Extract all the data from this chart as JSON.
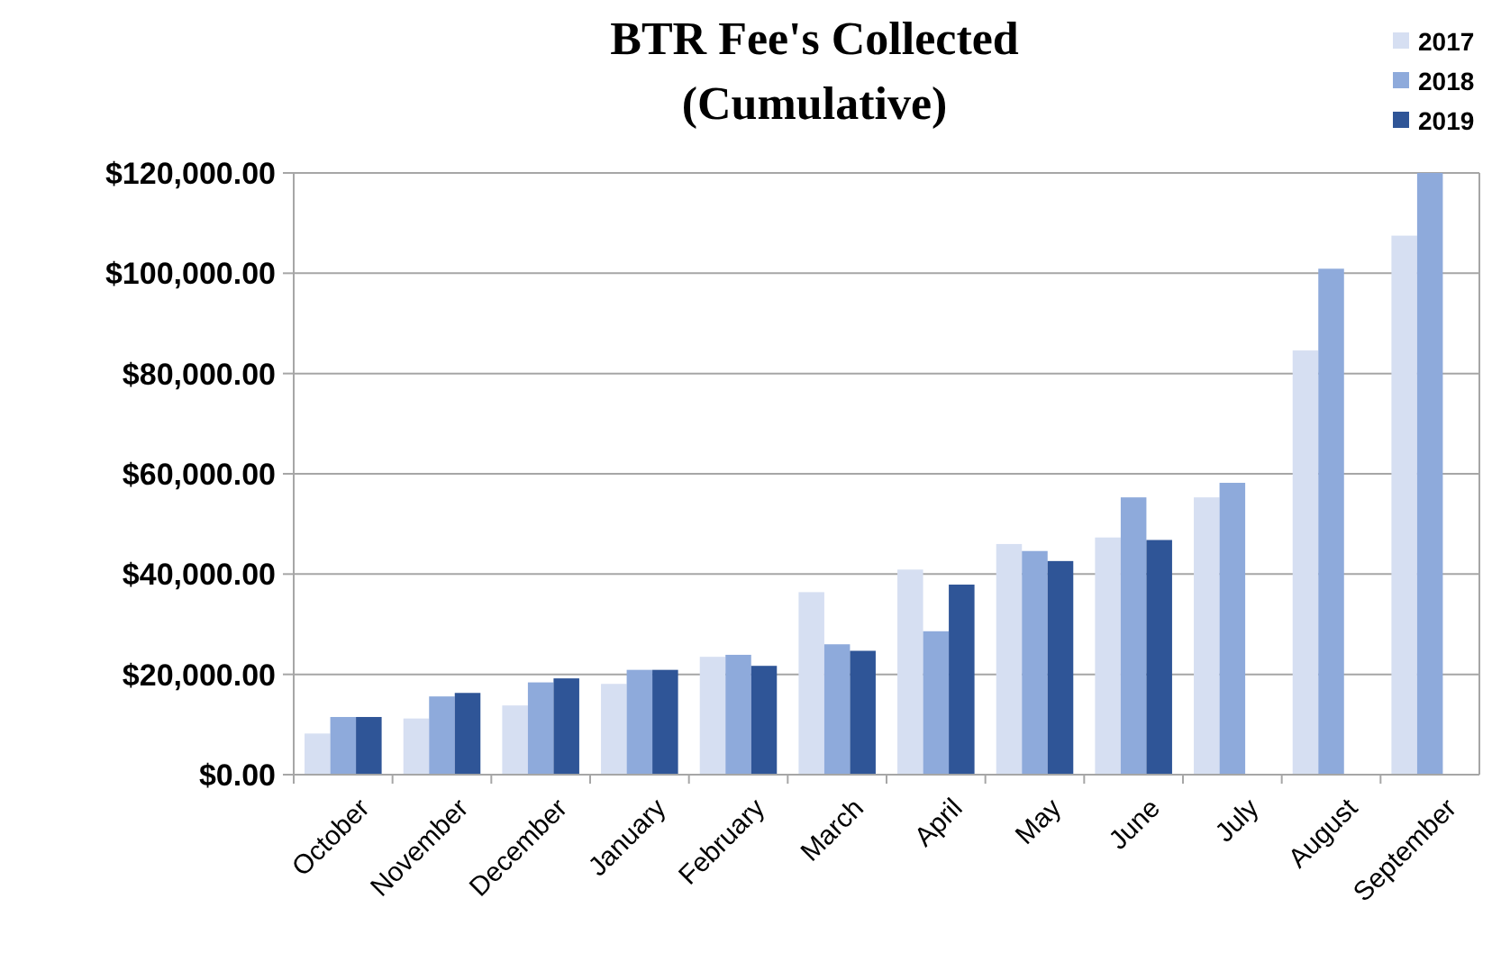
{
  "chart_data": {
    "type": "bar",
    "title": "BTR Fee's Collected",
    "subtitle": "(Cumulative)",
    "categories": [
      "October",
      "November",
      "December",
      "January",
      "February",
      "March",
      "April",
      "May",
      "June",
      "July",
      "August",
      "September"
    ],
    "series": [
      {
        "name": "2017",
        "color": "#d6dff2",
        "values": [
          8200,
          11200,
          13800,
          18100,
          23500,
          36400,
          40900,
          46000,
          47300,
          55300,
          84600,
          107500
        ]
      },
      {
        "name": "2018",
        "color": "#8eaadb",
        "values": [
          11500,
          15600,
          18400,
          20900,
          23900,
          26000,
          28600,
          44600,
          55300,
          58200,
          100900,
          120000
        ]
      },
      {
        "name": "2019",
        "color": "#2f5597",
        "values": [
          11500,
          16300,
          19200,
          20900,
          21700,
          24700,
          37900,
          42600,
          46800,
          null,
          null,
          null
        ]
      }
    ],
    "ylim": [
      0,
      120000
    ],
    "yticks": [
      {
        "value": 0,
        "label": "$0.00"
      },
      {
        "value": 20000,
        "label": "$20,000.00"
      },
      {
        "value": 40000,
        "label": "$40,000.00"
      },
      {
        "value": 60000,
        "label": "$60,000.00"
      },
      {
        "value": 80000,
        "label": "$80,000.00"
      },
      {
        "value": 100000,
        "label": "$100,000.00"
      },
      {
        "value": 120000,
        "label": "$120,000.00"
      }
    ],
    "grid": "y",
    "legend": "top right"
  }
}
